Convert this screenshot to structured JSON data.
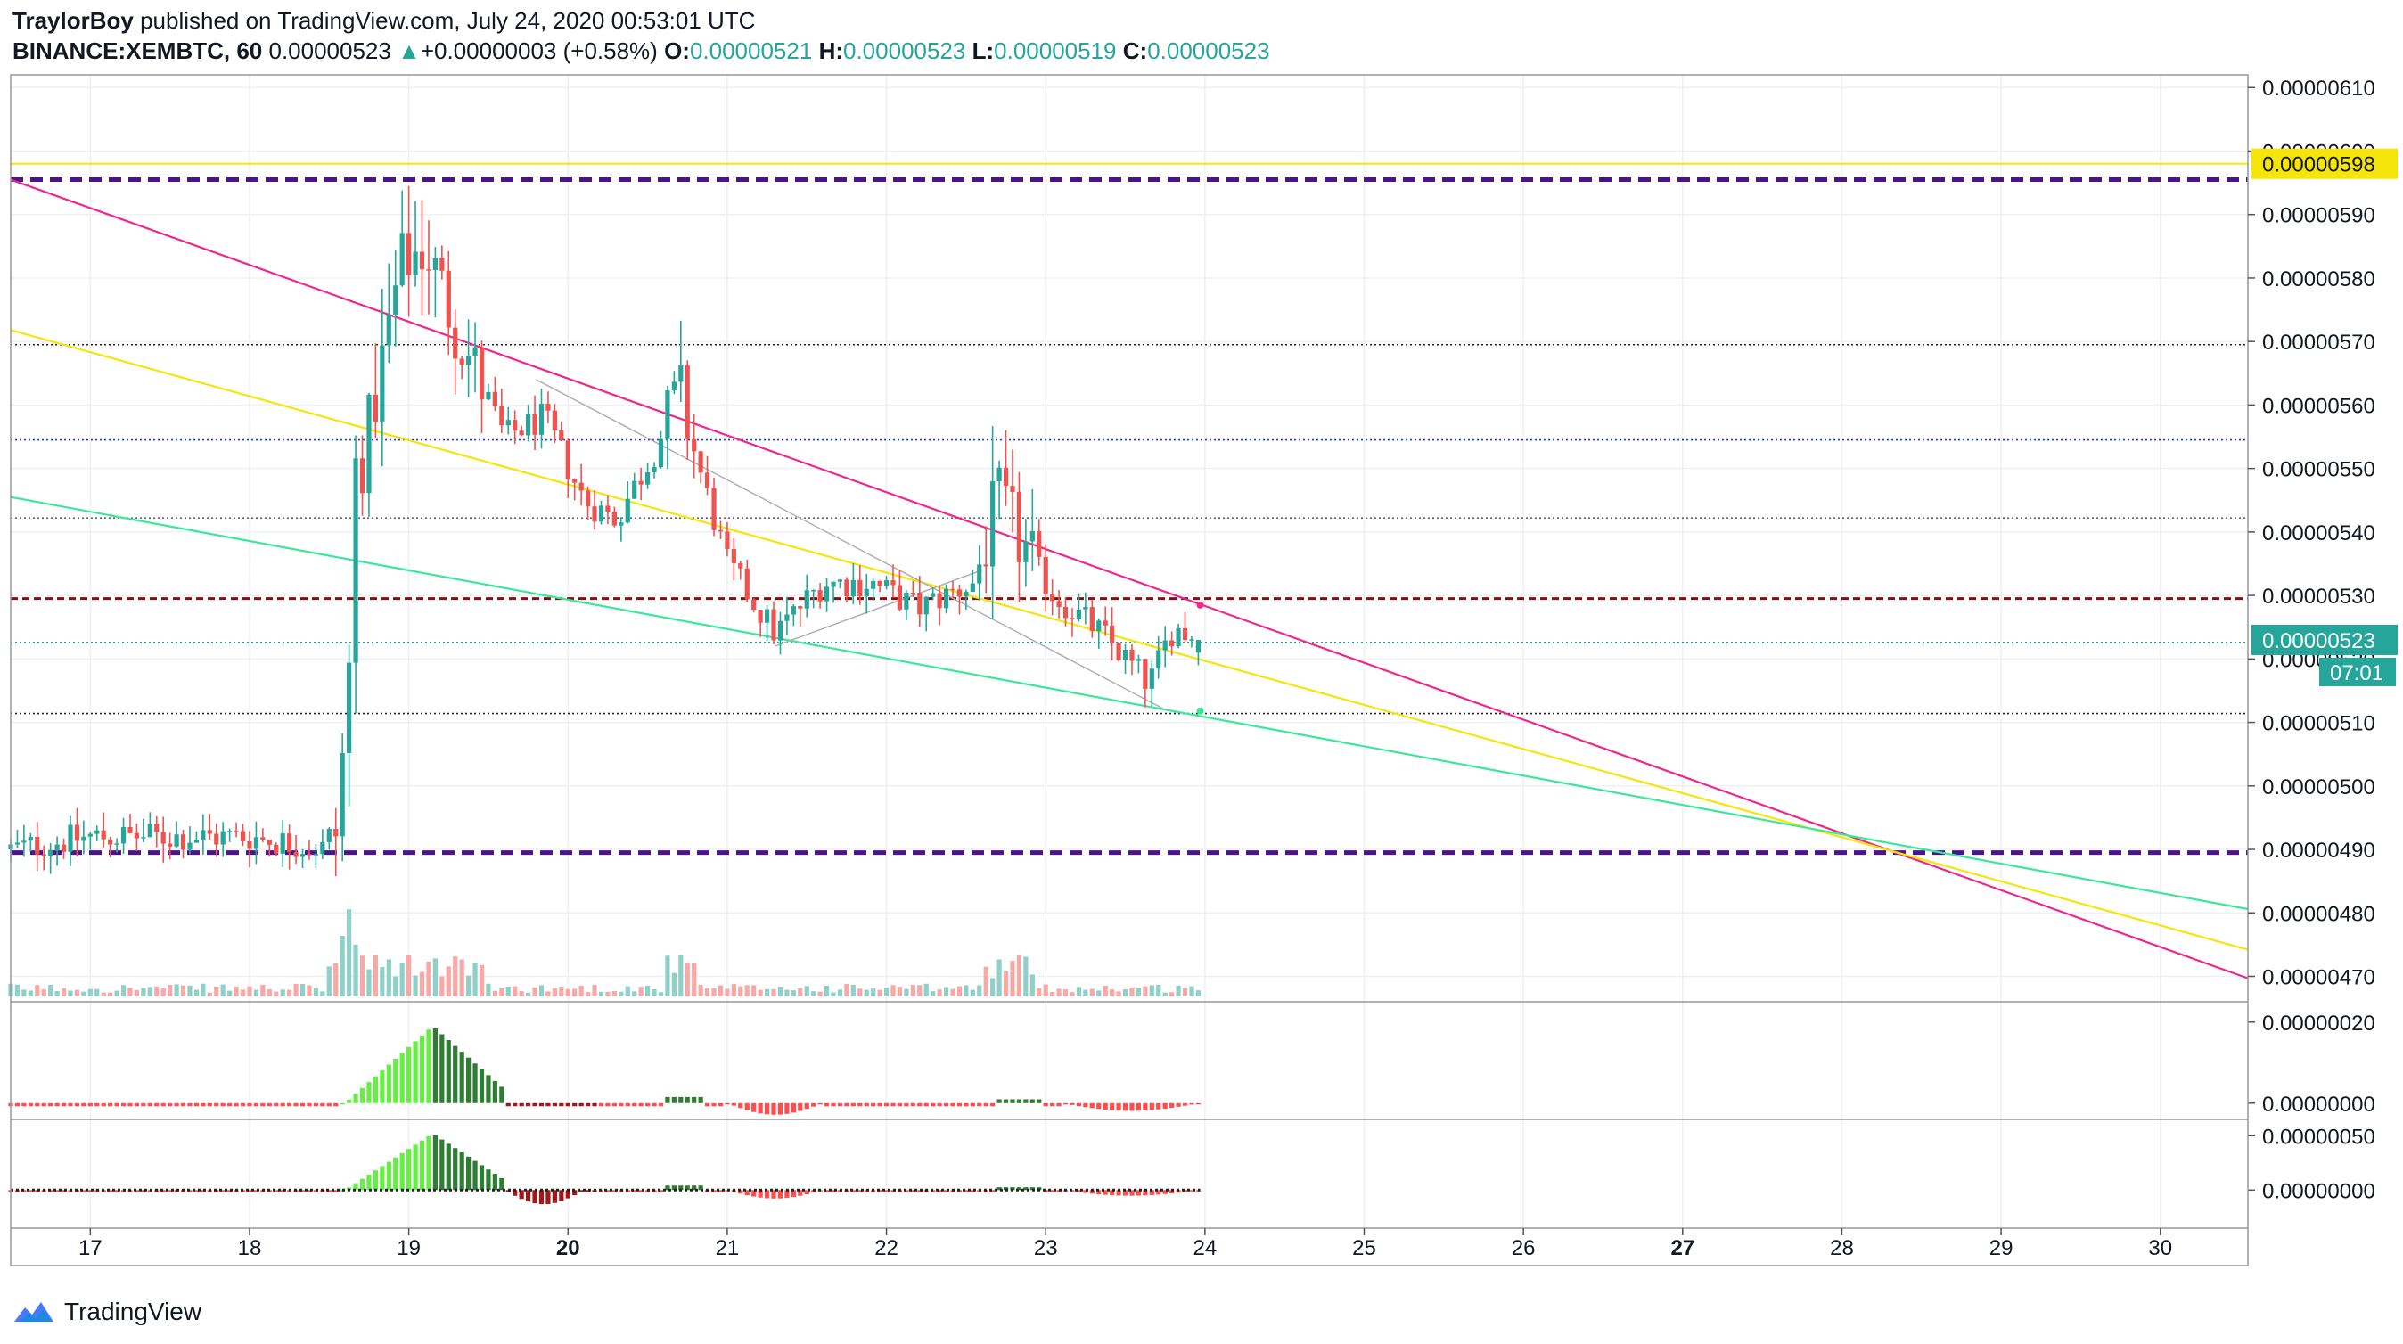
{
  "header": {
    "author": "TraylorBoy",
    "published_text": "published on TradingView.com, July 24, 2020 00:53:01 UTC",
    "symbol": "BINANCE:XEMBTC, 60",
    "price": "0.00000523",
    "change_arrow": "▲",
    "change": "+0.00000003 (+0.58%)",
    "o_label": "O:",
    "o_value": "0.00000521",
    "h_label": "H:",
    "h_value": "0.00000523",
    "l_label": "L:",
    "l_value": "0.00000519",
    "c_label": "C:",
    "c_value": "0.00000523"
  },
  "footer": {
    "brand": "TradingView",
    "logo_icon": "tradingview-cloud-icon"
  },
  "colors": {
    "up": "#26a69a",
    "down": "#ef5350",
    "vol_up": "#8fd1c9",
    "vol_down": "#f7a9a7",
    "purple_dash": "#4a148c",
    "maroon_dash": "#880e0e",
    "blue_dot": "#1a3fd6",
    "teal_dot": "#26a69a",
    "pink_line": "#f0288c",
    "yellow_line": "#f5e50a",
    "green_line": "#3ae89a",
    "gray_line": "#b0b0b0",
    "hist_bright": "#66ee44",
    "hist_dark": "#2e7d32",
    "hist_red": "#ff4d4d",
    "hist_darkred": "#a01818"
  },
  "chart_data": {
    "type": "candlestick",
    "symbol": "BINANCE:XEMBTC",
    "interval": "60",
    "x_ticks": [
      "17",
      "18",
      "19",
      "20",
      "21",
      "22",
      "23",
      "24",
      "25",
      "26",
      "27",
      "28",
      "29",
      "30"
    ],
    "x_tick_bold": [
      "20",
      "27"
    ],
    "x_range_days": [
      16.5,
      30.55
    ],
    "y_ticks": [
      "0.00000610",
      "0.00000600",
      "0.00000590",
      "0.00000580",
      "0.00000570",
      "0.00000560",
      "0.00000550",
      "0.00000540",
      "0.00000530",
      "0.00000520",
      "0.00000510",
      "0.00000500",
      "0.00000490",
      "0.00000480",
      "0.00000470"
    ],
    "y_range": [
      4.66e-06,
      6.12e-06
    ],
    "price_tags": [
      {
        "value": 5.98e-06,
        "label": "0.00000598",
        "style": "yellow"
      },
      {
        "value": 5.23e-06,
        "label": "0.00000523",
        "style": "teal"
      }
    ],
    "countdown": "07:01",
    "anchors": [
      [
        16.5,
        4.9e-06
      ],
      [
        17.0,
        4.92e-06
      ],
      [
        17.5,
        4.92e-06
      ],
      [
        18.0,
        4.92e-06
      ],
      [
        18.5,
        4.9e-06
      ],
      [
        18.55,
        4.93e-06
      ],
      [
        18.63,
        5.2e-06
      ],
      [
        18.66,
        5.5e-06
      ],
      [
        18.72,
        5.52e-06
      ],
      [
        18.95,
        5.82e-06
      ],
      [
        19.1,
        5.85e-06
      ],
      [
        19.3,
        5.72e-06
      ],
      [
        19.6,
        5.55e-06
      ],
      [
        19.85,
        5.58e-06
      ],
      [
        20.1,
        5.45e-06
      ],
      [
        20.3,
        5.42e-06
      ],
      [
        20.55,
        5.53e-06
      ],
      [
        20.7,
        5.62e-06
      ],
      [
        20.8,
        5.52e-06
      ],
      [
        21.0,
        5.35e-06
      ],
      [
        21.3,
        5.24e-06
      ],
      [
        21.6,
        5.32e-06
      ],
      [
        21.9,
        5.32e-06
      ],
      [
        22.2,
        5.28e-06
      ],
      [
        22.55,
        5.32e-06
      ],
      [
        22.7,
        5.45e-06
      ],
      [
        22.85,
        5.38e-06
      ],
      [
        23.05,
        5.3e-06
      ],
      [
        23.35,
        5.24e-06
      ],
      [
        23.65,
        5.16e-06
      ],
      [
        23.8,
        5.25e-06
      ],
      [
        23.97,
        5.23e-06
      ]
    ],
    "horizontal_lines": [
      {
        "value": 5.955e-06,
        "style": "purple-dash"
      },
      {
        "value": 5.695e-06,
        "style": "black-dot"
      },
      {
        "value": 5.545e-06,
        "style": "blue-dot"
      },
      {
        "value": 5.422e-06,
        "style": "gray-dot"
      },
      {
        "value": 5.295e-06,
        "style": "maroon-dash"
      },
      {
        "value": 5.226e-06,
        "style": "teal-dot"
      },
      {
        "value": 5.114e-06,
        "style": "black-dot"
      },
      {
        "value": 4.895e-06,
        "style": "purple-dash"
      }
    ],
    "trend_lines": [
      {
        "from": [
          16.5,
          5.955e-06
        ],
        "to": [
          30.55,
          4.697e-06
        ],
        "style": "pink"
      },
      {
        "from": [
          16.5,
          5.718e-06
        ],
        "to": [
          30.55,
          4.742e-06
        ],
        "style": "yellow"
      },
      {
        "from": [
          16.5,
          5.455e-06
        ],
        "to": [
          30.55,
          4.806e-06
        ],
        "style": "green"
      },
      {
        "from": [
          19.8,
          5.64e-06
        ],
        "to": [
          23.75,
          5.12e-06
        ],
        "style": "gray"
      },
      {
        "from": [
          21.3,
          5.22e-06
        ],
        "to": [
          22.6,
          5.34e-06
        ],
        "style": "gray"
      }
    ],
    "indicators": [
      {
        "panel": 1,
        "y_ticks": [
          "0.00000020",
          "0.00000000"
        ],
        "y_range": [
          -4e-08,
          2.5e-07
        ]
      },
      {
        "panel": 2,
        "y_ticks": [
          "0.00000050",
          "0.00000000"
        ],
        "y_range": [
          -3.5e-07,
          6.5e-07
        ]
      }
    ]
  }
}
